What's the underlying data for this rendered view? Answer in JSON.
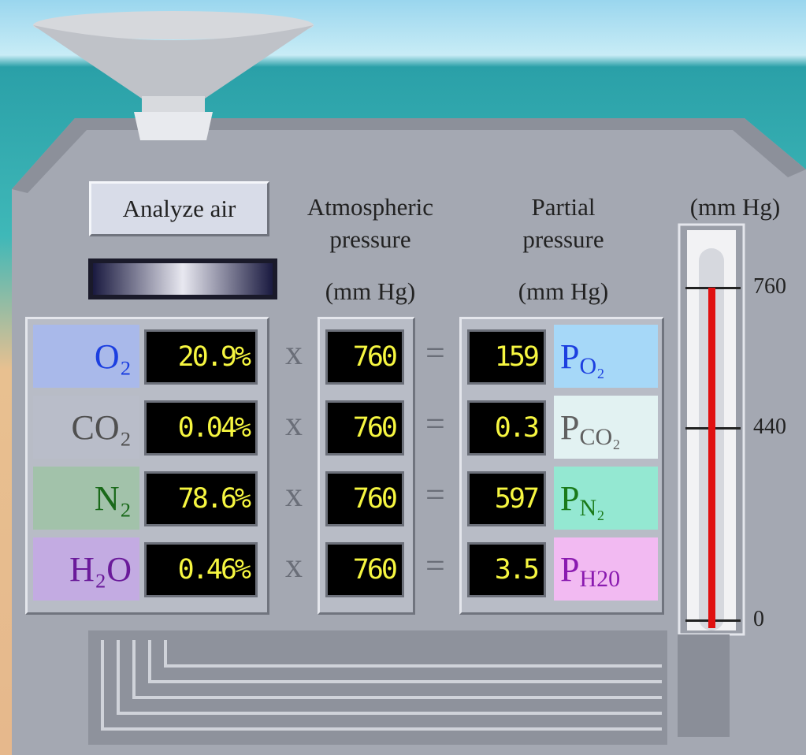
{
  "button": "Analyze air",
  "headers": {
    "atmospheric": [
      "Atmospheric",
      "pressure",
      "(mm Hg)"
    ],
    "partial": [
      "Partial",
      "pressure",
      "(mm Hg)"
    ]
  },
  "operators": {
    "times": "x",
    "equals": "="
  },
  "rows": [
    {
      "gas": "O₂",
      "percent": "20.9%",
      "atmospheric": 760,
      "partial": 159,
      "symbol": "P",
      "sub": "O₂",
      "bg": "#a9b9ea",
      "color": "#1c3fe0",
      "pbg": "#a6d8f8",
      "pcolor": "#1c3fe0"
    },
    {
      "gas": "CO₂",
      "percent": "0.04%",
      "atmospheric": 760,
      "partial": 0.3,
      "symbol": "P",
      "sub": "CO₂",
      "bg": "#b9bdc9",
      "color": "#505050",
      "pbg": "#e2f2f2",
      "pcolor": "#606060"
    },
    {
      "gas": "N₂",
      "percent": "78.6%",
      "atmospheric": 760,
      "partial": 597,
      "symbol": "P",
      "sub": "N₂",
      "bg": "#a2c2aa",
      "color": "#1a6a1a",
      "pbg": "#94e8d2",
      "pcolor": "#1a7a1a"
    },
    {
      "gas": "H₂O",
      "percent": "0.46%",
      "atmospheric": 760,
      "partial": 3.5,
      "symbol": "P",
      "sub": "H20",
      "bg": "#c3abe2",
      "color": "#6a1a9a",
      "pbg": "#f2baf2",
      "pcolor": "#8a1ab0"
    }
  ],
  "thermometer": {
    "unit": "(mm Hg)",
    "ylim": [
      0,
      760
    ],
    "ticks": [
      760,
      440,
      0
    ],
    "reading": 760
  }
}
